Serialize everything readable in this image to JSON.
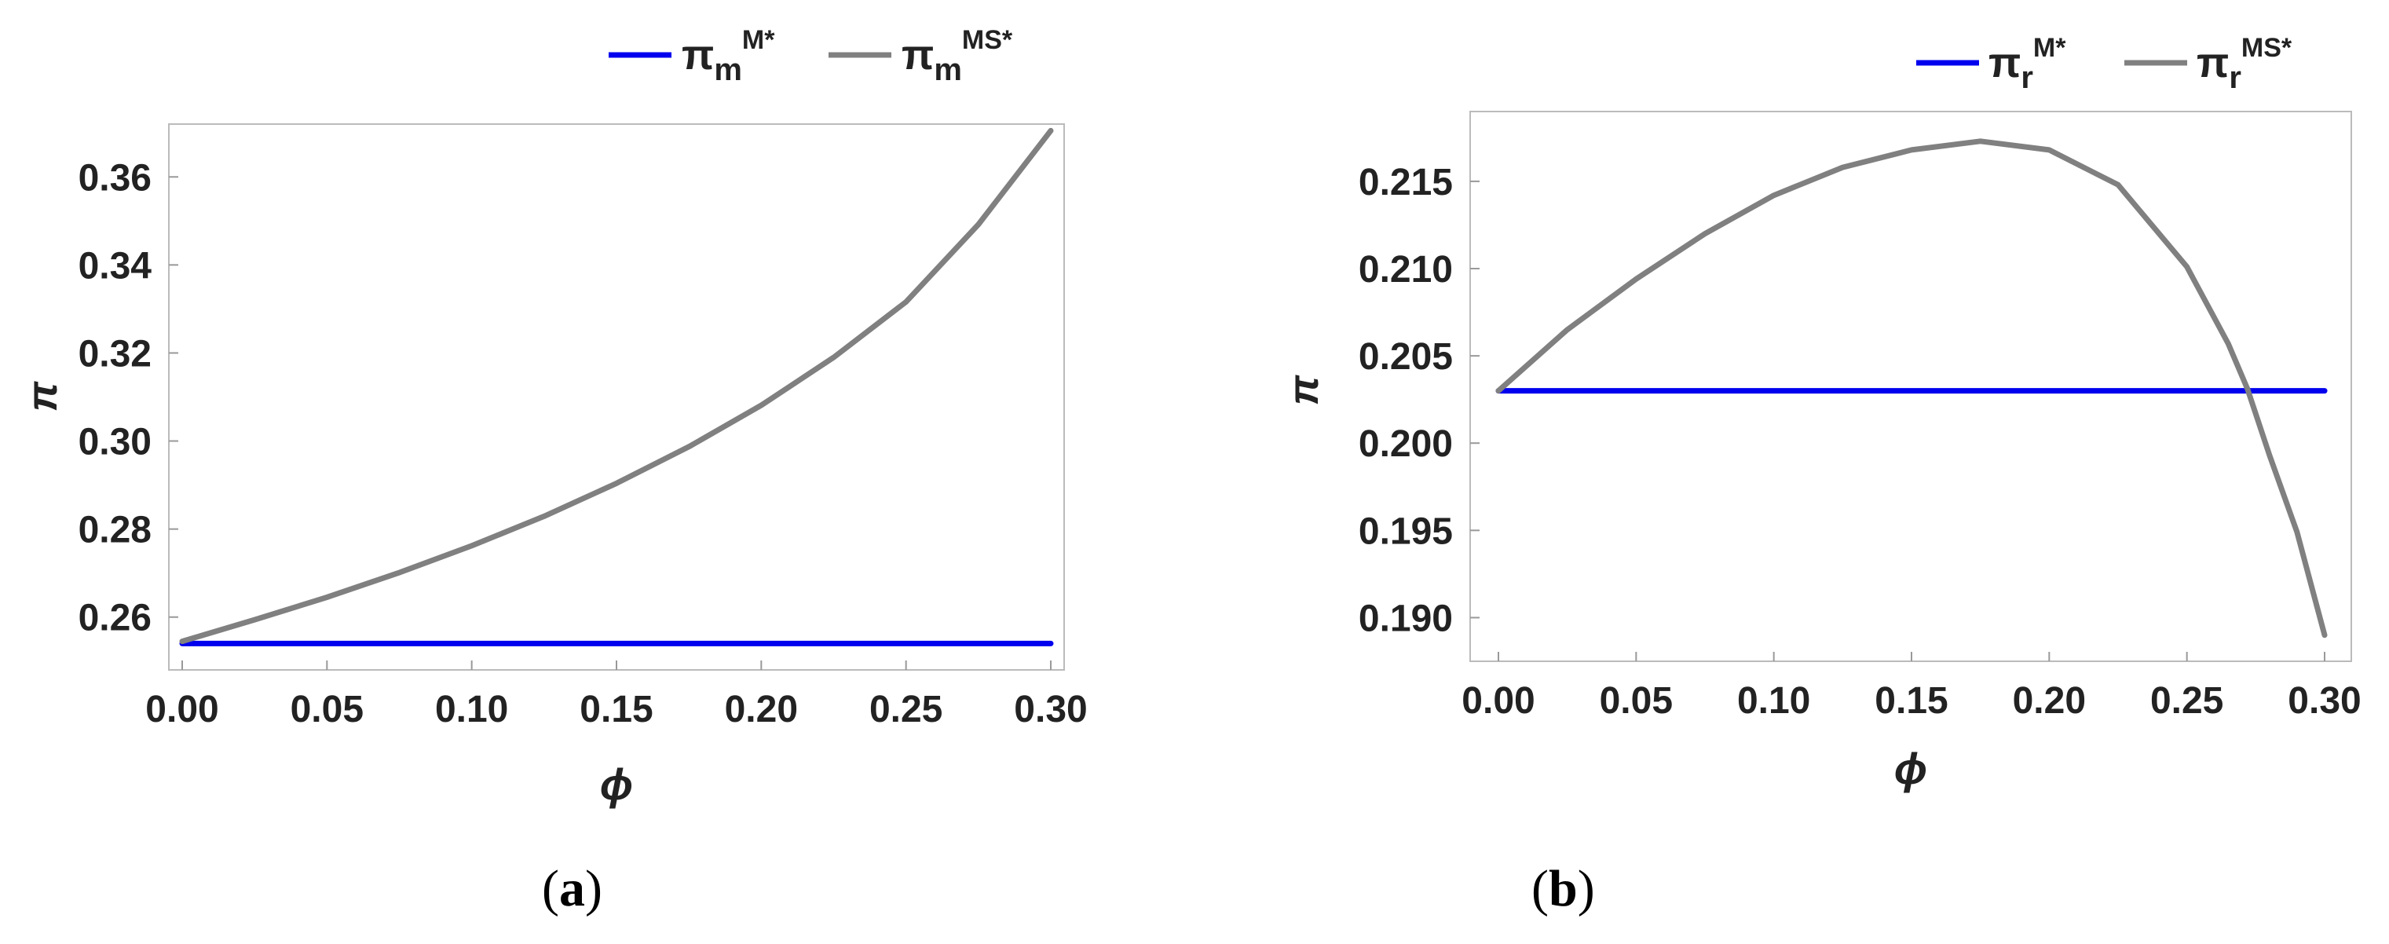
{
  "chart_data": [
    {
      "type": "line",
      "panel_label": "(a)",
      "caption_open": "(",
      "caption_letter": "a",
      "caption_close": ")",
      "xlabel": "ϕ",
      "ylabel": "π",
      "xlim": [
        0,
        0.3
      ],
      "ylim": [
        0.248,
        0.372
      ],
      "xticks": [
        0.0,
        0.05,
        0.1,
        0.15,
        0.2,
        0.25,
        0.3
      ],
      "xtick_labels": [
        "0.00",
        "0.05",
        "0.10",
        "0.15",
        "0.20",
        "0.25",
        "0.30"
      ],
      "yticks": [
        0.26,
        0.28,
        0.3,
        0.32,
        0.34,
        0.36
      ],
      "ytick_labels": [
        "0.26",
        "0.28",
        "0.30",
        "0.32",
        "0.34",
        "0.36"
      ],
      "grid": false,
      "legend_position": "top-right",
      "series": [
        {
          "name": "πm M*",
          "legend": {
            "base": "π",
            "sub": "m",
            "sup": "M*"
          },
          "color": "#0000ee",
          "x": [
            0,
            0.05,
            0.1,
            0.15,
            0.2,
            0.25,
            0.3
          ],
          "y": [
            0.254,
            0.254,
            0.254,
            0.254,
            0.254,
            0.254,
            0.254
          ]
        },
        {
          "name": "πm MS*",
          "legend": {
            "base": "π",
            "sub": "m",
            "sup": "MS*"
          },
          "color": "#808080",
          "x": [
            0,
            0.025,
            0.05,
            0.075,
            0.1,
            0.125,
            0.15,
            0.175,
            0.2,
            0.225,
            0.25,
            0.275,
            0.3
          ],
          "y": [
            0.2545,
            0.2594,
            0.2645,
            0.2701,
            0.2762,
            0.2829,
            0.2904,
            0.2987,
            0.3081,
            0.319,
            0.3316,
            0.3492,
            0.3705
          ]
        }
      ]
    },
    {
      "type": "line",
      "panel_label": "(b)",
      "caption_open": "(",
      "caption_letter": "b",
      "caption_close": ")",
      "xlabel": "ϕ",
      "ylabel": "π",
      "xlim": [
        0,
        0.3
      ],
      "ylim": [
        0.1875,
        0.219
      ],
      "xticks": [
        0.0,
        0.05,
        0.1,
        0.15,
        0.2,
        0.25,
        0.3
      ],
      "xtick_labels": [
        "0.00",
        "0.05",
        "0.10",
        "0.15",
        "0.20",
        "0.25",
        "0.30"
      ],
      "yticks": [
        0.19,
        0.195,
        0.2,
        0.205,
        0.21,
        0.215
      ],
      "ytick_labels": [
        "0.190",
        "0.195",
        "0.200",
        "0.205",
        "0.210",
        "0.215"
      ],
      "grid": false,
      "legend_position": "top-right",
      "series": [
        {
          "name": "πr M*",
          "legend": {
            "base": "π",
            "sub": "r",
            "sup": "M*"
          },
          "color": "#0000ee",
          "x": [
            0,
            0.05,
            0.1,
            0.15,
            0.2,
            0.25,
            0.3
          ],
          "y": [
            0.203,
            0.203,
            0.203,
            0.203,
            0.203,
            0.203,
            0.203
          ]
        },
        {
          "name": "πr MS*",
          "legend": {
            "base": "π",
            "sub": "r",
            "sup": "MS*"
          },
          "color": "#808080",
          "x": [
            0,
            0.025,
            0.05,
            0.075,
            0.1,
            0.125,
            0.15,
            0.175,
            0.2,
            0.225,
            0.25,
            0.265,
            0.272,
            0.28,
            0.29,
            0.3
          ],
          "y": [
            0.203,
            0.2065,
            0.2094,
            0.212,
            0.2142,
            0.2158,
            0.2168,
            0.2173,
            0.2168,
            0.2148,
            0.2101,
            0.2057,
            0.2031,
            0.1993,
            0.1949,
            0.189
          ]
        }
      ]
    }
  ]
}
